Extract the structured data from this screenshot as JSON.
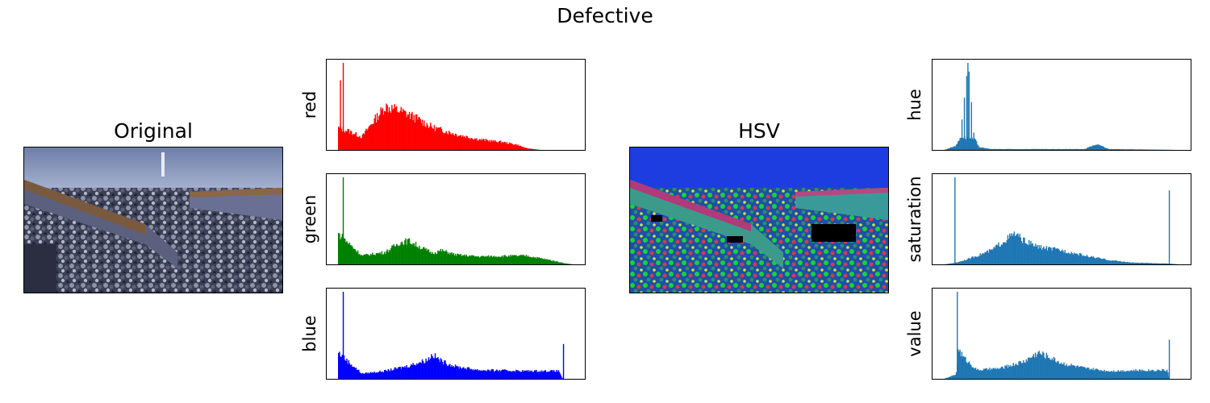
{
  "title": "Defective",
  "images": [
    {
      "key": "original",
      "title": "Original"
    },
    {
      "key": "hsv",
      "title": "HSV"
    }
  ],
  "colors": {
    "red": "#ff0000",
    "green": "#008000",
    "blue": "#0000ff",
    "hsv": "#1f77b4"
  },
  "chart_data": [
    {
      "type": "bar",
      "ylabel": "red",
      "color": "#ff0000",
      "peaks": [
        {
          "x": 0.02,
          "h": 1.0
        },
        {
          "x": 0.008,
          "h": 0.8
        }
      ],
      "profile": [
        [
          0,
          0.25
        ],
        [
          0.04,
          0.22
        ],
        [
          0.1,
          0.15
        ],
        [
          0.14,
          0.3
        ],
        [
          0.2,
          0.5
        ],
        [
          0.26,
          0.45
        ],
        [
          0.32,
          0.38
        ],
        [
          0.4,
          0.26
        ],
        [
          0.5,
          0.18
        ],
        [
          0.6,
          0.12
        ],
        [
          0.7,
          0.09
        ],
        [
          0.76,
          0.06
        ],
        [
          0.8,
          0.02
        ],
        [
          0.86,
          0.0
        ],
        [
          1.0,
          0.0
        ]
      ]
    },
    {
      "type": "bar",
      "ylabel": "green",
      "color": "#008000",
      "peaks": [
        {
          "x": 0.02,
          "h": 1.0
        }
      ],
      "profile": [
        [
          0,
          0.35
        ],
        [
          0.04,
          0.25
        ],
        [
          0.1,
          0.1
        ],
        [
          0.2,
          0.14
        ],
        [
          0.26,
          0.25
        ],
        [
          0.3,
          0.27
        ],
        [
          0.34,
          0.21
        ],
        [
          0.4,
          0.13
        ],
        [
          0.44,
          0.16
        ],
        [
          0.5,
          0.11
        ],
        [
          0.6,
          0.09
        ],
        [
          0.8,
          0.1
        ],
        [
          0.9,
          0.05
        ],
        [
          0.97,
          0.01
        ],
        [
          1.0,
          0.0
        ]
      ]
    },
    {
      "type": "bar",
      "ylabel": "blue",
      "color": "#0000ff",
      "peaks": [
        {
          "x": 0.02,
          "h": 1.0
        },
        {
          "x": 0.955,
          "h": 0.4
        }
      ],
      "profile": [
        [
          0,
          0.3
        ],
        [
          0.04,
          0.2
        ],
        [
          0.1,
          0.06
        ],
        [
          0.2,
          0.09
        ],
        [
          0.3,
          0.15
        ],
        [
          0.38,
          0.22
        ],
        [
          0.4,
          0.28
        ],
        [
          0.44,
          0.2
        ],
        [
          0.5,
          0.14
        ],
        [
          0.6,
          0.1
        ],
        [
          0.8,
          0.09
        ],
        [
          0.94,
          0.09
        ],
        [
          0.955,
          0.0
        ],
        [
          1.0,
          0.0
        ]
      ]
    },
    {
      "type": "bar",
      "ylabel": "hue",
      "color": "#1f77b4",
      "peaks": [
        {
          "x": 0.1,
          "h": 1.0
        },
        {
          "x": 0.095,
          "h": 0.85
        },
        {
          "x": 0.105,
          "h": 0.9
        },
        {
          "x": 0.085,
          "h": 0.6
        },
        {
          "x": 0.075,
          "h": 0.35
        },
        {
          "x": 0.115,
          "h": 0.55
        },
        {
          "x": 0.125,
          "h": 0.2
        }
      ],
      "profile": [
        [
          0,
          0.0
        ],
        [
          0.05,
          0.05
        ],
        [
          0.07,
          0.15
        ],
        [
          0.13,
          0.12
        ],
        [
          0.15,
          0.03
        ],
        [
          0.2,
          0.01
        ],
        [
          0.6,
          0.01
        ],
        [
          0.62,
          0.04
        ],
        [
          0.66,
          0.06
        ],
        [
          0.7,
          0.01
        ],
        [
          1.0,
          0.0
        ]
      ]
    },
    {
      "type": "bar",
      "ylabel": "saturation",
      "color": "#1f77b4",
      "peaks": [
        {
          "x": 0.045,
          "h": 1.0
        },
        {
          "x": 0.955,
          "h": 0.85
        }
      ],
      "profile": [
        [
          0,
          0.0
        ],
        [
          0.05,
          0.02
        ],
        [
          0.1,
          0.06
        ],
        [
          0.2,
          0.16
        ],
        [
          0.26,
          0.28
        ],
        [
          0.3,
          0.35
        ],
        [
          0.34,
          0.27
        ],
        [
          0.4,
          0.2
        ],
        [
          0.5,
          0.16
        ],
        [
          0.6,
          0.1
        ],
        [
          0.7,
          0.05
        ],
        [
          0.8,
          0.02
        ],
        [
          0.95,
          0.01
        ],
        [
          1.0,
          0.0
        ]
      ]
    },
    {
      "type": "bar",
      "ylabel": "value",
      "color": "#1f77b4",
      "peaks": [
        {
          "x": 0.055,
          "h": 1.0
        },
        {
          "x": 0.955,
          "h": 0.45
        }
      ],
      "profile": [
        [
          0,
          0.0
        ],
        [
          0.05,
          0.05
        ],
        [
          0.06,
          0.35
        ],
        [
          0.08,
          0.25
        ],
        [
          0.14,
          0.1
        ],
        [
          0.24,
          0.12
        ],
        [
          0.34,
          0.2
        ],
        [
          0.4,
          0.3
        ],
        [
          0.44,
          0.26
        ],
        [
          0.5,
          0.18
        ],
        [
          0.6,
          0.12
        ],
        [
          0.7,
          0.09
        ],
        [
          0.9,
          0.1
        ],
        [
          0.95,
          0.1
        ],
        [
          0.96,
          0.0
        ],
        [
          1.0,
          0.0
        ]
      ]
    }
  ]
}
